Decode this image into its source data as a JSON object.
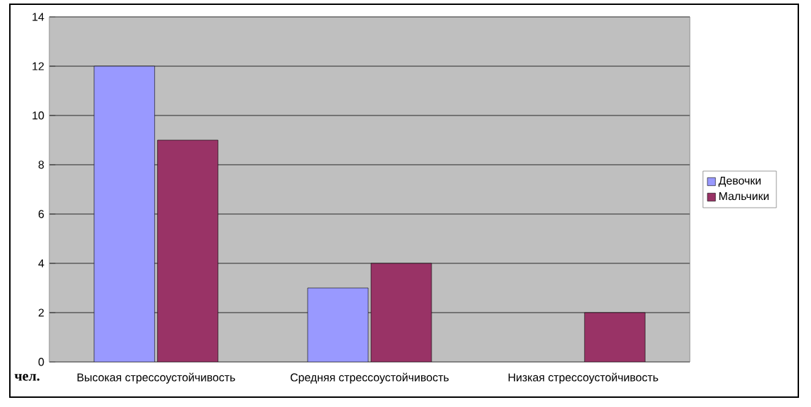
{
  "chart_data": {
    "type": "bar",
    "categories": [
      "Высокая стрессоустойчивость",
      "Средняя стрессоустойчивость",
      "Низкая стрессоустойчивость"
    ],
    "series": [
      {
        "name": "Девочки",
        "color": "#9999ff",
        "values": [
          12,
          3,
          null
        ]
      },
      {
        "name": "Мальчики",
        "color": "#993366",
        "values": [
          9,
          4,
          2
        ]
      }
    ],
    "ylim": [
      0,
      14
    ],
    "yticks": [
      0,
      2,
      4,
      6,
      8,
      10,
      12,
      14
    ],
    "grid": "y",
    "legend": "right",
    "annotations": [
      "чел."
    ]
  }
}
